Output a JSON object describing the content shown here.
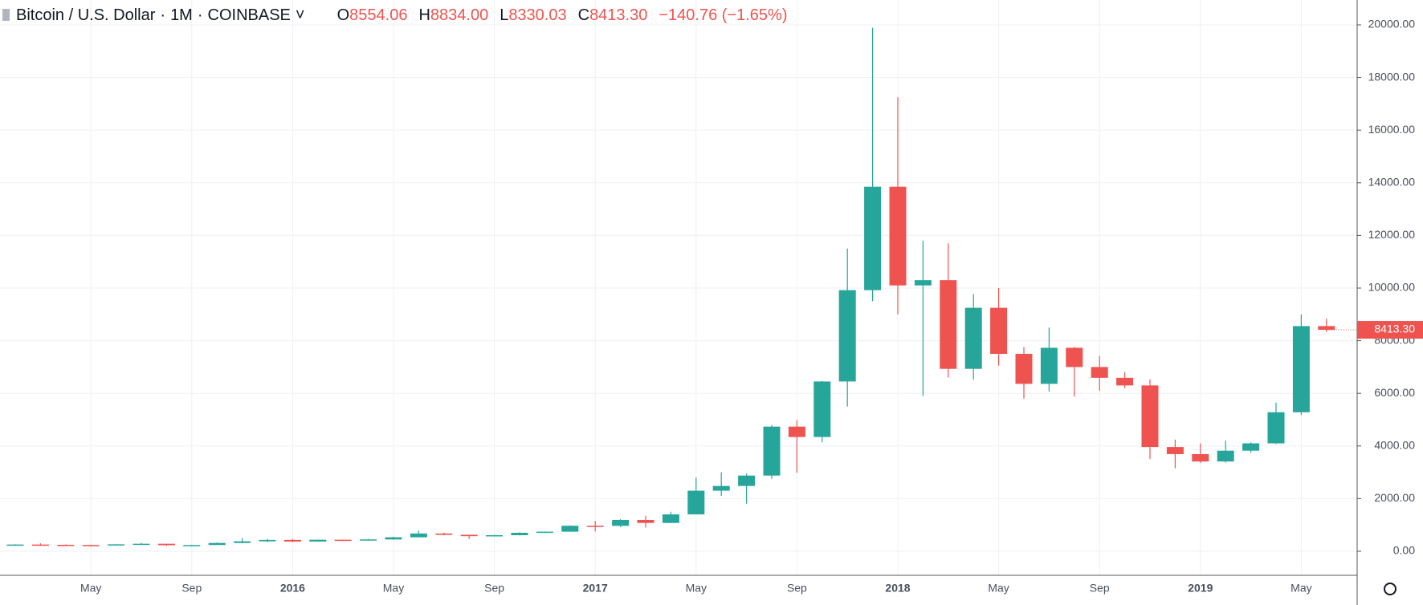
{
  "header": {
    "symbol": "Bitcoin / U.S. Dollar",
    "separator": "·",
    "interval": "1M",
    "exchange": "COINBASE",
    "open_letter": "O",
    "open": "8554.06",
    "high_letter": "H",
    "high": "8834.00",
    "low_letter": "L",
    "low": "8330.03",
    "close_letter": "C",
    "close": "8413.30",
    "change": "−140.76 (−1.65%)"
  },
  "chart_data": {
    "type": "candlestick",
    "categories": [
      null,
      null,
      null,
      "May",
      null,
      null,
      null,
      "Sep",
      null,
      null,
      null,
      "2016",
      null,
      null,
      null,
      "May",
      null,
      null,
      null,
      "Sep",
      null,
      null,
      null,
      "2017",
      null,
      null,
      null,
      "May",
      null,
      null,
      null,
      "Sep",
      null,
      null,
      null,
      "2018",
      null,
      null,
      null,
      "May",
      null,
      null,
      null,
      "Sep",
      null,
      null,
      null,
      "2019",
      null,
      null,
      null,
      "May",
      null
    ],
    "open": [
      218,
      254,
      244,
      236,
      230,
      263,
      284,
      230,
      236,
      314,
      377,
      430,
      368,
      437,
      416,
      448,
      530,
      673,
      624,
      574,
      609,
      700,
      743,
      968,
      964,
      1190,
      1075,
      1400,
      2300,
      2480,
      2875,
      4735,
      4340,
      6450,
      9920,
      13850,
      10100,
      10300,
      6930,
      9250,
      7500,
      6360,
      7730,
      7000,
      6590,
      6300,
      3960,
      3690,
      3410,
      3820,
      4100,
      5280,
      8554.06
    ],
    "high": [
      265,
      300,
      260,
      248,
      267,
      318,
      285,
      246,
      333,
      502,
      469,
      465,
      441,
      440,
      469,
      550,
      780,
      703,
      628,
      627,
      720,
      750,
      980,
      1150,
      1220,
      1350,
      1500,
      2800,
      3000,
      2950,
      4800,
      4980,
      6470,
      11500,
      19891,
      17250,
      11800,
      11700,
      9770,
      10000,
      7760,
      8500,
      7760,
      7410,
      6800,
      6530,
      4240,
      4100,
      4200,
      4140,
      5650,
      9000,
      8834
    ],
    "low": [
      212,
      235,
      214,
      225,
      221,
      253,
      198,
      224,
      236,
      305,
      345,
      351,
      366,
      392,
      413,
      435,
      528,
      605,
      468,
      570,
      604,
      691,
      743,
      751,
      915,
      900,
      1070,
      1400,
      2100,
      1810,
      2750,
      2980,
      4140,
      5500,
      9500,
      9000,
      5900,
      6600,
      6520,
      7050,
      5800,
      6070,
      5880,
      6100,
      6200,
      3500,
      3150,
      3350,
      3370,
      3750,
      4070,
      5180,
      8330.03
    ],
    "close": [
      254,
      244,
      236,
      230,
      263,
      284,
      230,
      236,
      314,
      377,
      430,
      368,
      437,
      416,
      448,
      530,
      673,
      624,
      574,
      609,
      700,
      743,
      968,
      964,
      1190,
      1075,
      1400,
      2300,
      2480,
      2875,
      4735,
      4340,
      6450,
      9920,
      13850,
      10100,
      10300,
      6930,
      9250,
      7500,
      6360,
      7730,
      7000,
      6590,
      6300,
      3960,
      3690,
      3410,
      3820,
      4100,
      5280,
      8554,
      8413.3
    ],
    "up_color": "#26a69a",
    "down_color": "#ef5350",
    "ylim": [
      -915,
      20945
    ],
    "yticks": [
      {
        "value": 0,
        "label": "0.00"
      },
      {
        "value": 2000,
        "label": "2000.00"
      },
      {
        "value": 4000,
        "label": "4000.00"
      },
      {
        "value": 6000,
        "label": "6000.00"
      },
      {
        "value": 8000,
        "label": "8000.00"
      },
      {
        "value": 10000,
        "label": "10000.00"
      },
      {
        "value": 12000,
        "label": "12000.00"
      },
      {
        "value": 14000,
        "label": "14000.00"
      },
      {
        "value": 16000,
        "label": "16000.00"
      },
      {
        "value": 18000,
        "label": "18000.00"
      },
      {
        "value": 20000,
        "label": "20000.00"
      }
    ],
    "last_price": {
      "value": 8413.3,
      "label": "8413.30"
    },
    "grid": true
  }
}
